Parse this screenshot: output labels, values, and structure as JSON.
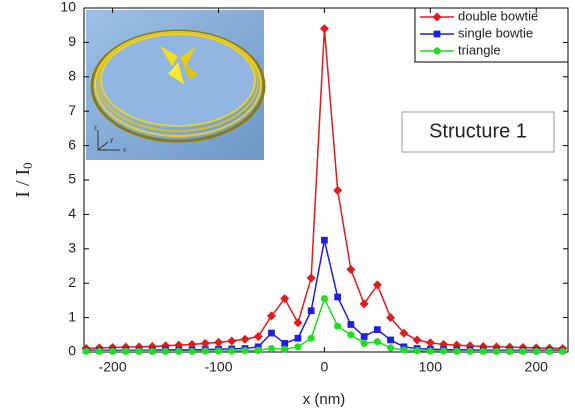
{
  "chart_data": {
    "type": "line",
    "xlabel": "x (nm)",
    "ylabel": "I / I",
    "ylabel_subscript": "0",
    "annotation": "Structure 1",
    "inset_axis_labels": [
      "z",
      "y",
      "x"
    ],
    "x": [
      -225,
      -212.5,
      -200,
      -187.5,
      -175,
      -162.5,
      -150,
      -137.5,
      -125,
      -112.5,
      -100,
      -87.5,
      -75,
      -62.5,
      -50,
      -37.5,
      -25,
      -12.5,
      0,
      12.5,
      25,
      37.5,
      50,
      62.5,
      75,
      87.5,
      100,
      112.5,
      125,
      137.5,
      150,
      162.5,
      175,
      187.5,
      200,
      212.5,
      225
    ],
    "series": [
      {
        "name": "double bowtie",
        "color": "#e31a1c",
        "marker": "diamond",
        "values": [
          0.1,
          0.12,
          0.13,
          0.14,
          0.15,
          0.16,
          0.18,
          0.2,
          0.22,
          0.25,
          0.28,
          0.32,
          0.37,
          0.45,
          1.05,
          1.55,
          0.85,
          2.15,
          9.4,
          4.7,
          2.4,
          1.4,
          1.95,
          1.0,
          0.55,
          0.35,
          0.27,
          0.22,
          0.2,
          0.18,
          0.16,
          0.15,
          0.14,
          0.13,
          0.12,
          0.11,
          0.1
        ]
      },
      {
        "name": "single bowtie",
        "color": "#1f1fe0",
        "marker": "square",
        "values": [
          0.05,
          0.05,
          0.05,
          0.05,
          0.05,
          0.05,
          0.06,
          0.06,
          0.06,
          0.07,
          0.08,
          0.09,
          0.1,
          0.15,
          0.55,
          0.25,
          0.4,
          1.2,
          3.25,
          1.6,
          0.8,
          0.45,
          0.65,
          0.35,
          0.15,
          0.1,
          0.08,
          0.07,
          0.06,
          0.06,
          0.05,
          0.05,
          0.05,
          0.05,
          0.05,
          0.05,
          0.05
        ]
      },
      {
        "name": "triangle",
        "color": "#22dd22",
        "marker": "circle",
        "values": [
          0.02,
          0.02,
          0.02,
          0.02,
          0.02,
          0.02,
          0.02,
          0.02,
          0.02,
          0.03,
          0.03,
          0.03,
          0.04,
          0.05,
          0.1,
          0.08,
          0.15,
          0.4,
          1.55,
          0.75,
          0.5,
          0.25,
          0.3,
          0.12,
          0.06,
          0.04,
          0.03,
          0.03,
          0.02,
          0.02,
          0.02,
          0.02,
          0.02,
          0.02,
          0.02,
          0.02,
          0.02
        ]
      }
    ],
    "xlim": [
      -227,
      230
    ],
    "ylim": [
      0,
      10
    ],
    "xticks": [
      -200,
      -100,
      0,
      100,
      200
    ],
    "yticks": [
      0,
      1,
      2,
      3,
      4,
      5,
      6,
      7,
      8,
      9,
      10
    ],
    "legend": "upper right"
  }
}
